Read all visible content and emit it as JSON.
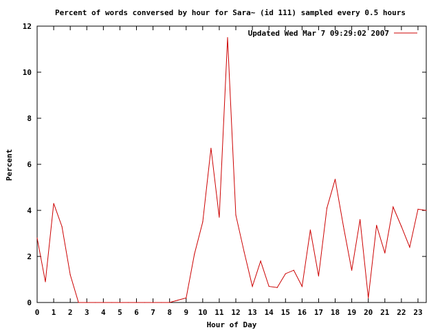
{
  "chart_data": {
    "type": "line",
    "title": "Percent of words conversed by hour for Sara~ (id 111) sampled every 0.5 hours",
    "xlabel": "Hour of Day",
    "ylabel": "Percent",
    "xlim": [
      0,
      23.5
    ],
    "ylim": [
      0,
      12
    ],
    "x_ticks": [
      "0",
      "1",
      "2",
      "3",
      "4",
      "5",
      "6",
      "7",
      "8",
      "9",
      "10",
      "11",
      "12",
      "13",
      "14",
      "15",
      "16",
      "17",
      "18",
      "19",
      "20",
      "21",
      "22",
      "23"
    ],
    "y_ticks": [
      "0",
      "2",
      "4",
      "6",
      "8",
      "10",
      "12"
    ],
    "legend_position": "top-right",
    "grid": false,
    "series": [
      {
        "name": "Updated Wed Mar  7 09:29:02 2007",
        "color": "#cc0000",
        "x": [
          0,
          0.5,
          1,
          1.5,
          2,
          2.5,
          3,
          3.5,
          4,
          4.5,
          5,
          5.5,
          6,
          6.5,
          7,
          7.5,
          8,
          8.5,
          9,
          9.5,
          10,
          10.5,
          11,
          11.5,
          12,
          12.5,
          13,
          13.5,
          14,
          14.5,
          15,
          15.5,
          16,
          16.5,
          17,
          17.5,
          18,
          18.5,
          19,
          19.5,
          20,
          20.5,
          21,
          21.5,
          22,
          22.5,
          23,
          23.5
        ],
        "y": [
          2.8,
          0.9,
          4.3,
          3.3,
          1.2,
          0,
          0,
          0,
          0,
          0,
          0,
          0,
          0,
          0,
          0,
          0,
          0,
          0.1,
          0.2,
          2.1,
          3.5,
          6.7,
          3.7,
          11.5,
          3.8,
          2.2,
          0.7,
          1.8,
          0.7,
          0.65,
          1.25,
          1.4,
          0.7,
          3.15,
          1.15,
          4.1,
          5.35,
          3.3,
          1.4,
          3.6,
          0.2,
          3.35,
          2.15,
          4.15,
          3.3,
          2.4,
          4.05,
          4.0
        ]
      }
    ]
  }
}
